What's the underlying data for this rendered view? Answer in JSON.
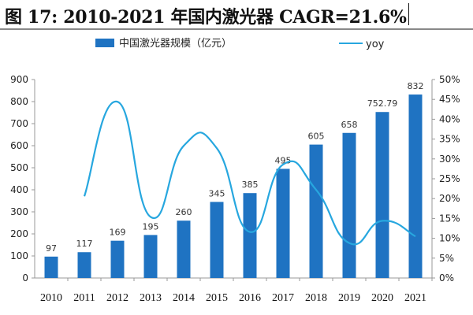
{
  "title": "图 17:  2010-2021 年国内激光器 CAGR=21.6%",
  "chart_data": {
    "type": "bar",
    "categories": [
      "2010",
      "2011",
      "2012",
      "2013",
      "2014",
      "2015",
      "2016",
      "2017",
      "2018",
      "2019",
      "2020",
      "2021"
    ],
    "series": [
      {
        "name": "中国激光器规模（亿元）",
        "type": "bar",
        "axis": "left",
        "values": [
          97,
          117,
          169,
          195,
          260,
          345,
          385,
          495,
          605,
          658,
          752.79,
          832
        ],
        "labels": [
          "97",
          "117",
          "169",
          "195",
          "260",
          "345",
          "385",
          "495",
          "605",
          "658",
          "752.79",
          "832"
        ],
        "color": "#1f73c2"
      },
      {
        "name": "yoy",
        "type": "line",
        "axis": "right",
        "smooth": true,
        "values": [
          null,
          20.6,
          44.4,
          15.4,
          33.3,
          32.7,
          11.6,
          28.6,
          22.2,
          8.8,
          14.4,
          10.5
        ],
        "color": "#27a7df"
      }
    ],
    "left_axis": {
      "min": 0,
      "max": 900,
      "step": 100,
      "ticks": [
        "0",
        "100",
        "200",
        "300",
        "400",
        "500",
        "600",
        "700",
        "800",
        "900"
      ]
    },
    "right_axis": {
      "min": 0,
      "max": 50,
      "step": 5,
      "ticks": [
        "0%",
        "5%",
        "10%",
        "15%",
        "20%",
        "25%",
        "30%",
        "35%",
        "40%",
        "45%",
        "50%"
      ]
    },
    "legend": "top"
  }
}
